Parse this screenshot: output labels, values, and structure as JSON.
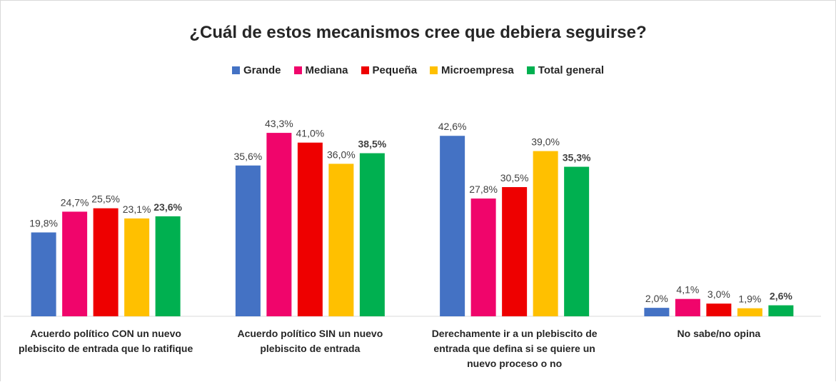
{
  "chart_data": {
    "type": "bar",
    "title": "¿Cuál de estos mecanismos cree  que debiera seguirse?",
    "categories": [
      "Acuerdo político CON un nuevo plebiscito de entrada que lo ratifique",
      "Acuerdo político SIN un nuevo plebiscito de entrada",
      "Derechamente ir a un plebiscito de entrada que defina si se quiere un nuevo proceso o no",
      "No sabe/no opina"
    ],
    "ylim": [
      0,
      45
    ],
    "series": [
      {
        "name": "Grande",
        "color": "#4472c4",
        "values": [
          19.8,
          35.6,
          42.6,
          2.0
        ],
        "value_labels": [
          "19,8%",
          "35,6%",
          "42,6%",
          "2,0%"
        ]
      },
      {
        "name": "Mediana",
        "color": "#f0056b",
        "values": [
          24.7,
          43.3,
          27.8,
          4.1
        ],
        "value_labels": [
          "24,7%",
          "43,3%",
          "27,8%",
          "4,1%"
        ]
      },
      {
        "name": "Pequeña",
        "color": "#ee0000",
        "values": [
          25.5,
          41.0,
          30.5,
          3.0
        ],
        "value_labels": [
          "25,5%",
          "41,0%",
          "30,5%",
          "3,0%"
        ]
      },
      {
        "name": "Microempresa",
        "color": "#ffc000",
        "values": [
          23.1,
          36.0,
          39.0,
          1.9
        ],
        "value_labels": [
          "23,1%",
          "36,0%",
          "39,0%",
          "1,9%"
        ]
      },
      {
        "name": "Total general",
        "color": "#00b050",
        "values": [
          23.6,
          38.5,
          35.3,
          2.6
        ],
        "value_labels": [
          "23,6%",
          "38,5%",
          "35,3%",
          "2,6%"
        ]
      }
    ]
  }
}
